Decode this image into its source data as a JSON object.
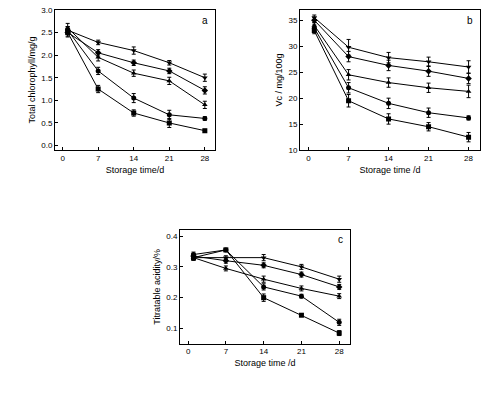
{
  "chart_data": [
    {
      "type": "line",
      "annotation": "a",
      "x_label": "Storage time/d",
      "y_label": "Total chlorophyll/mg/g",
      "x": [
        1,
        7,
        14,
        21,
        28
      ],
      "xlim": [
        -1.5,
        30
      ],
      "xticks": [
        0,
        7,
        14,
        21,
        28
      ],
      "ylim": [
        -0.1,
        3.0
      ],
      "yticks": [
        {
          "value": 0,
          "label": "0.0"
        },
        {
          "value": 0.5,
          "label": "0.5"
        },
        {
          "value": 1,
          "label": "1.0"
        },
        {
          "value": 1.5,
          "label": "1.5"
        },
        {
          "value": 2,
          "label": "2.0"
        },
        {
          "value": 2.5,
          "label": "2.5"
        },
        {
          "value": 3,
          "label": "3.0"
        }
      ],
      "grid": false,
      "color": "#000000",
      "line_style": "solid",
      "series": [
        {
          "marker": "square",
          "values": [
            2.5,
            1.25,
            0.72,
            0.5,
            0.33
          ],
          "errors": [
            0.1,
            0.08,
            0.07,
            0.1,
            0.03
          ]
        },
        {
          "marker": "circle",
          "values": [
            2.55,
            1.65,
            1.05,
            0.68,
            0.6
          ],
          "errors": [
            0.08,
            0.08,
            0.1,
            0.1,
            0.04
          ]
        },
        {
          "marker": "triangle-up",
          "values": [
            2.6,
            1.95,
            1.6,
            1.43,
            0.9
          ],
          "errors": [
            0.1,
            0.08,
            0.07,
            0.08,
            0.08
          ]
        },
        {
          "marker": "diamond",
          "values": [
            2.5,
            2.05,
            1.83,
            1.65,
            1.22
          ],
          "errors": [
            0.08,
            0.07,
            0.06,
            0.06,
            0.08
          ]
        },
        {
          "marker": "triangle-down",
          "values": [
            2.55,
            2.28,
            2.1,
            1.83,
            1.5
          ],
          "errors": [
            0.08,
            0.05,
            0.08,
            0.05,
            0.08
          ]
        }
      ]
    },
    {
      "type": "line",
      "annotation": "b",
      "x_label": "Storage time /d",
      "y_label": "Vc / mg/100g",
      "x": [
        1,
        7,
        14,
        21,
        28
      ],
      "xlim": [
        -1.5,
        30
      ],
      "xticks": [
        0,
        7,
        14,
        21,
        28
      ],
      "ylim": [
        10,
        37
      ],
      "yticks": [
        10,
        15,
        20,
        25,
        30,
        35
      ],
      "grid": false,
      "color": "#000000",
      "line_style": "solid",
      "series": [
        {
          "marker": "square",
          "values": [
            33,
            19.5,
            16,
            14.5,
            12.5
          ],
          "errors": [
            0.6,
            1.2,
            1.0,
            0.8,
            0.9
          ]
        },
        {
          "marker": "circle",
          "values": [
            33.5,
            22,
            19,
            17.2,
            16.2
          ],
          "errors": [
            0.6,
            1.0,
            1.0,
            0.9,
            0.4
          ]
        },
        {
          "marker": "triangle-up",
          "values": [
            34,
            24.5,
            23,
            22,
            21.3
          ],
          "errors": [
            0.6,
            1.0,
            0.9,
            0.9,
            1.2
          ]
        },
        {
          "marker": "diamond",
          "values": [
            35,
            28,
            26.3,
            25.2,
            23.8
          ],
          "errors": [
            0.5,
            1.0,
            1.0,
            1.0,
            1.0
          ]
        },
        {
          "marker": "triangle-down",
          "values": [
            35.5,
            29.8,
            27.8,
            27,
            26
          ],
          "errors": [
            0.5,
            1.5,
            1.0,
            0.9,
            1.2
          ]
        }
      ]
    },
    {
      "type": "line",
      "annotation": "c",
      "x_label": "Storage time /d",
      "y_label": "Titratable acidity/%",
      "x": [
        1,
        7,
        14,
        21,
        28
      ],
      "xlim": [
        -1.5,
        30
      ],
      "xticks": [
        0,
        7,
        14,
        21,
        28
      ],
      "ylim": [
        0.05,
        0.42
      ],
      "yticks": [
        0.1,
        0.2,
        0.3,
        0.4
      ],
      "grid": false,
      "color": "#000000",
      "line_style": "solid",
      "series": [
        {
          "marker": "square",
          "values": [
            0.33,
            0.355,
            0.2,
            0.143,
            0.085
          ],
          "errors": [
            0.008,
            0.005,
            0.012,
            0.004,
            0.008
          ]
        },
        {
          "marker": "circle",
          "values": [
            0.34,
            0.355,
            0.235,
            0.205,
            0.12
          ],
          "errors": [
            0.008,
            0.005,
            0.01,
            0.006,
            0.01
          ]
        },
        {
          "marker": "triangle-up",
          "values": [
            0.33,
            0.295,
            0.26,
            0.23,
            0.205
          ],
          "errors": [
            0.008,
            0.008,
            0.01,
            0.008,
            0.008
          ]
        },
        {
          "marker": "diamond",
          "values": [
            0.335,
            0.32,
            0.305,
            0.275,
            0.235
          ],
          "errors": [
            0.008,
            0.008,
            0.008,
            0.008,
            0.008
          ]
        },
        {
          "marker": "triangle-down",
          "values": [
            0.33,
            0.33,
            0.33,
            0.3,
            0.26
          ],
          "errors": [
            0.008,
            0.006,
            0.01,
            0.008,
            0.01
          ]
        }
      ]
    }
  ]
}
